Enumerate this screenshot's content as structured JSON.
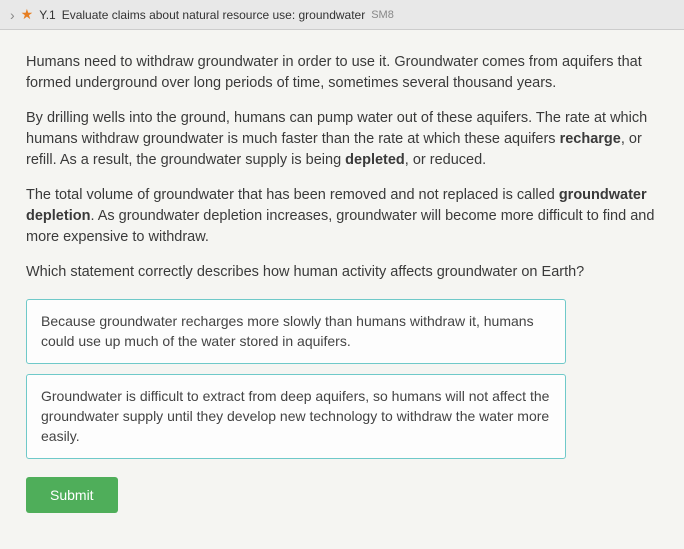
{
  "header": {
    "skill_code": "Y.1",
    "skill_title": "Evaluate claims about natural resource use: groundwater",
    "tag": "SM8"
  },
  "passage": {
    "p1": "Humans need to withdraw groundwater in order to use it. Groundwater comes from aquifers that formed underground over long periods of time, sometimes several thousand years.",
    "p2a": "By drilling wells into the ground, humans can pump water out of these aquifers. The rate at which humans withdraw groundwater is much faster than the rate at which these aquifers ",
    "p2b": "recharge",
    "p2c": ", or refill. As a result, the groundwater supply is being ",
    "p2d": "depleted",
    "p2e": ", or reduced.",
    "p3a": "The total volume of groundwater that has been removed and not replaced is called ",
    "p3b": "groundwater depletion",
    "p3c": ". As groundwater depletion increases, groundwater will become more difficult to find and more expensive to withdraw."
  },
  "question": "Which statement correctly describes how human activity affects groundwater on Earth?",
  "options": {
    "a": "Because groundwater recharges more slowly than humans withdraw it, humans could use up much of the water stored in aquifers.",
    "b": "Groundwater is difficult to extract from deep aquifers, so humans will not affect the groundwater supply until they develop new technology to withdraw the water more easily."
  },
  "buttons": {
    "submit": "Submit"
  },
  "colors": {
    "accent_teal": "#6fc9c9",
    "submit_green": "#4fae5a",
    "star_orange": "#e67e22",
    "page_bg": "#f5f5f2",
    "body_bg": "#c8c8c8",
    "header_bg": "#e8e8e8",
    "text": "#3a3a3a"
  }
}
